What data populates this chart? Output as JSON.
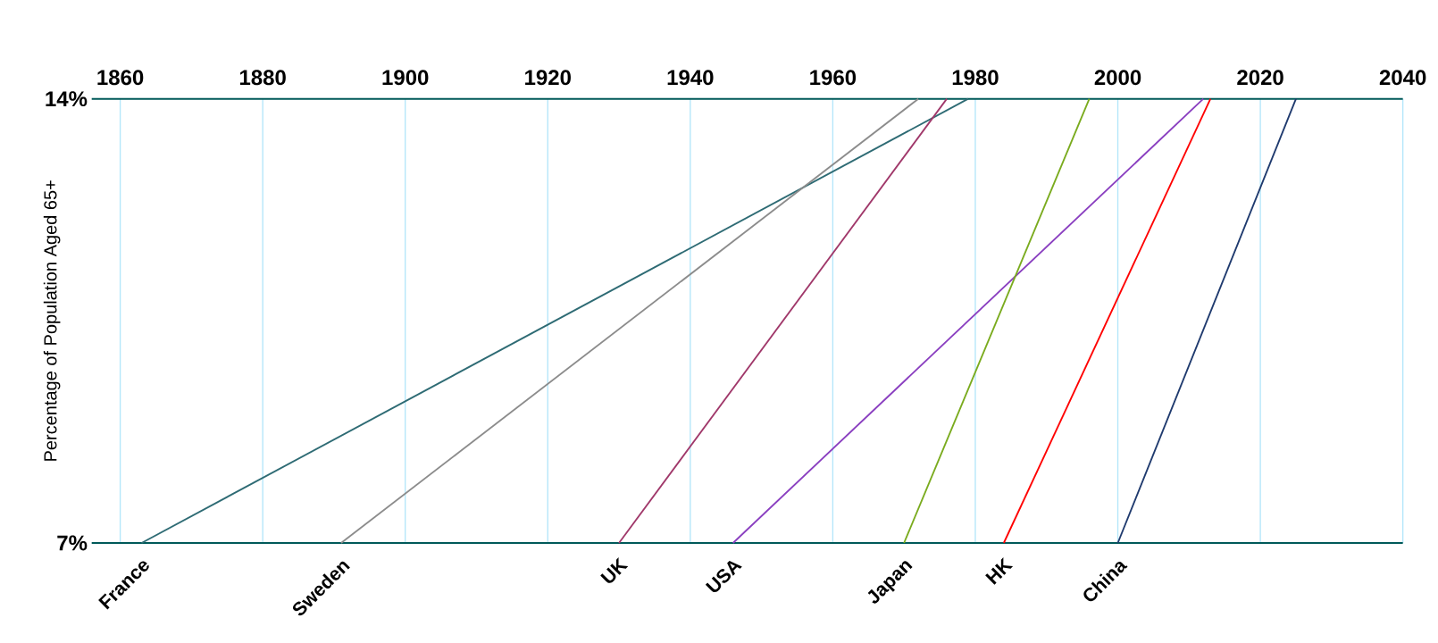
{
  "chart_data": {
    "type": "line",
    "ylabel": "Percentage of Population Aged 65+",
    "xlim": [
      1856,
      2040
    ],
    "xticks": [
      1860,
      1880,
      1900,
      1920,
      1940,
      1960,
      1980,
      2000,
      2020,
      2040
    ],
    "ylim": [
      7,
      14
    ],
    "yticks": [
      {
        "value": 7,
        "label": "7%"
      },
      {
        "value": 14,
        "label": "14%"
      }
    ],
    "grid": true,
    "legend": false,
    "series": [
      {
        "name": "France",
        "color": "#2e6b74",
        "x": [
          1863,
          1979
        ],
        "values": [
          7,
          14
        ]
      },
      {
        "name": "Sweden",
        "color": "#8c8c8c",
        "x": [
          1891,
          1972
        ],
        "values": [
          7,
          14
        ]
      },
      {
        "name": "UK",
        "color": "#a0386a",
        "x": [
          1930,
          1976
        ],
        "values": [
          7,
          14
        ]
      },
      {
        "name": "USA",
        "color": "#8a3fc0",
        "x": [
          1946,
          2012
        ],
        "values": [
          7,
          14
        ]
      },
      {
        "name": "Japan",
        "color": "#7aab1e",
        "x": [
          1970,
          1996
        ],
        "values": [
          7,
          14
        ]
      },
      {
        "name": "HK",
        "color": "#ff0000",
        "x": [
          1984,
          2013
        ],
        "values": [
          7,
          14
        ]
      },
      {
        "name": "China",
        "color": "#1f3a6e",
        "x": [
          2000,
          2025
        ],
        "values": [
          7,
          14
        ]
      }
    ]
  }
}
